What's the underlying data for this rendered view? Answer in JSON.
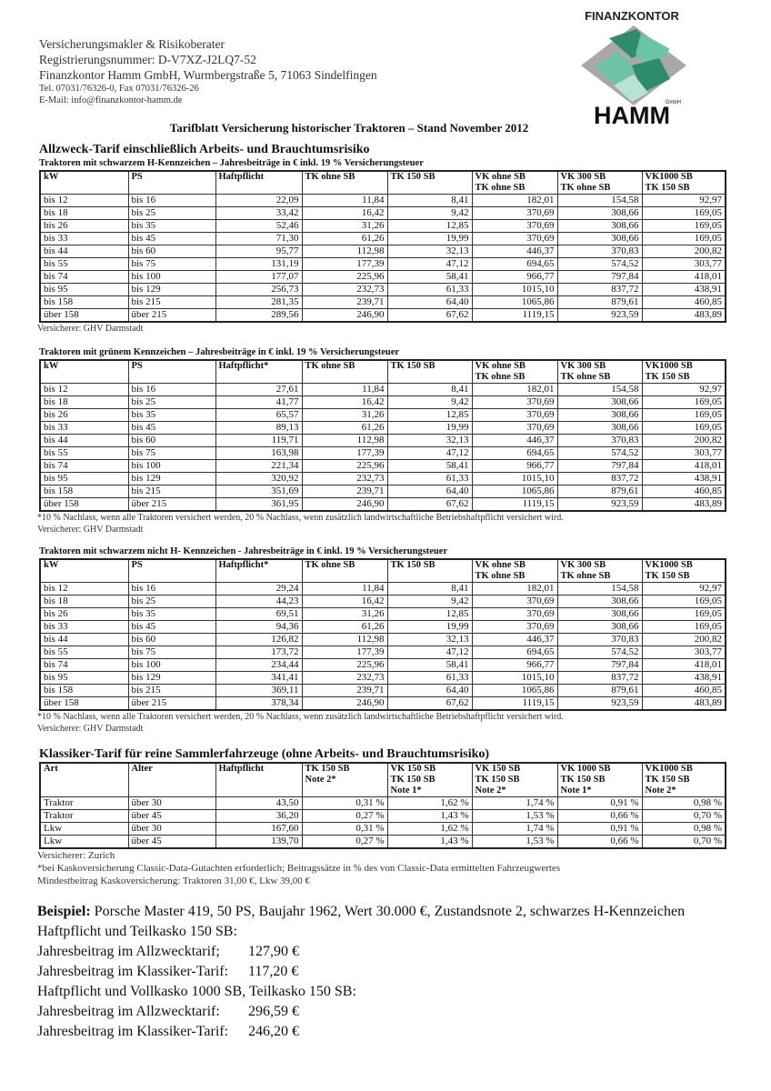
{
  "header": {
    "lines": [
      "Versicherungsmakler & Risikoberater",
      "Registrierungsnummer: D-V7XZ-J2LQ7-52",
      "Finanzkontor Hamm GmbH, Wurmbergstraße 5, 71063 Sindelfingen"
    ],
    "small_lines": [
      "Tel. 07031/76326-0, Fax 07031/76326-26",
      "E-Mail: info@finanzkontor-hamm.de"
    ]
  },
  "logo": {
    "top": "FINANZKONTOR",
    "gmbh": "GmbH",
    "name": "HAMM",
    "colors": [
      "#2e8b6e",
      "#6cc4a8",
      "#a8a8a8"
    ]
  },
  "title": "Tarifblatt Versicherung historischer Traktoren – Stand November 2012",
  "allzweck_title": "Allzweck-Tarif einschließlich Arbeits- und Brauchtumsrisiko",
  "tables": [
    {
      "subtitle": "Traktoren mit  schwarzem H-Kennzeichen – Jahresbeiträge in € inkl. 19 % Versicherungsteuer",
      "headers": [
        [
          "kW"
        ],
        [
          "PS"
        ],
        [
          "Haftpflicht"
        ],
        [
          "TK ohne SB"
        ],
        [
          "TK 150 SB"
        ],
        [
          "VK ohne SB",
          "TK ohne SB"
        ],
        [
          "VK 300 SB",
          "TK ohne SB"
        ],
        [
          "VK1000 SB",
          "TK 150 SB"
        ]
      ],
      "rows": [
        [
          "bis 12",
          "bis 16",
          "22,09",
          "11,84",
          "8,41",
          "182,01",
          "154,58",
          "92,97"
        ],
        [
          "bis 18",
          "bis 25",
          "33,42",
          "16,42",
          "9,42",
          "370,69",
          "308,66",
          "169,05"
        ],
        [
          "bis 26",
          "bis 35",
          "52,46",
          "31,26",
          "12,85",
          "370,69",
          "308,66",
          "169,05"
        ],
        [
          "bis 33",
          "bis 45",
          "71,30",
          "61,26",
          "19,99",
          "370,69",
          "308,66",
          "169,05"
        ],
        [
          "bis 44",
          "bis 60",
          "95,77",
          "112,98",
          "32,13",
          "446,37",
          "370,83",
          "200,82"
        ],
        [
          "bis 55",
          "bis 75",
          "131,19",
          "177,39",
          "47,12",
          "694,65",
          "574,52",
          "303,77"
        ],
        [
          "bis 74",
          "bis 100",
          "177,07",
          "225,96",
          "58,41",
          "966,77",
          "797,84",
          "418,01"
        ],
        [
          "bis 95",
          "bis 129",
          "256,73",
          "232,73",
          "61,33",
          "1015,10",
          "837,72",
          "438,91"
        ],
        [
          "bis 158",
          "bis 215",
          "281,35",
          "239,71",
          "64,40",
          "1065,86",
          "879,61",
          "460,85"
        ],
        [
          "über 158",
          "über 215",
          "289,56",
          "246,90",
          "67,62",
          "1119,15",
          "923,59",
          "483,89"
        ]
      ],
      "footnote": "",
      "insurer": "Versicherer: GHV Darmstadt"
    },
    {
      "subtitle": "Traktoren mit grünem Kennzeichen  – Jahresbeiträge in € inkl. 19 % Versicherungsteuer",
      "headers": [
        [
          "kW"
        ],
        [
          "PS"
        ],
        [
          "Haftpflicht*"
        ],
        [
          "TK ohne SB"
        ],
        [
          "TK 150 SB"
        ],
        [
          "VK ohne SB",
          "TK ohne SB"
        ],
        [
          "VK 300 SB",
          "TK ohne SB"
        ],
        [
          "VK1000 SB",
          "TK 150 SB"
        ]
      ],
      "rows": [
        [
          "bis 12",
          "bis 16",
          "27,61",
          "11,84",
          "8,41",
          "182,01",
          "154,58",
          "92,97"
        ],
        [
          "bis 18",
          "bis 25",
          "41,77",
          "16,42",
          "9,42",
          "370,69",
          "308,66",
          "169,05"
        ],
        [
          "bis 26",
          "bis 35",
          "65,57",
          "31,26",
          "12,85",
          "370,69",
          "308,66",
          "169,05"
        ],
        [
          "bis 33",
          "bis 45",
          "89,13",
          "61,26",
          "19,99",
          "370,69",
          "308,66",
          "169,05"
        ],
        [
          "bis 44",
          "bis 60",
          "119,71",
          "112,98",
          "32,13",
          "446,37",
          "370,83",
          "200,82"
        ],
        [
          "bis 55",
          "bis 75",
          "163,98",
          "177,39",
          "47,12",
          "694,65",
          "574,52",
          "303,77"
        ],
        [
          "bis 74",
          "bis 100",
          "221,34",
          "225,96",
          "58,41",
          "966,77",
          "797,84",
          "418,01"
        ],
        [
          "bis 95",
          "bis 129",
          "320,92",
          "232,73",
          "61,33",
          "1015,10",
          "837,72",
          "438,91"
        ],
        [
          "bis 158",
          "bis 215",
          "351,69",
          "239,71",
          "64,40",
          "1065,86",
          "879,61",
          "460,85"
        ],
        [
          "über 158",
          "über 215",
          "361,95",
          "246,90",
          "67,62",
          "1119,15",
          "923,59",
          "483,89"
        ]
      ],
      "footnote": "*10 % Nachlass, wenn alle Traktoren versichert werden, 20 % Nachlass, wenn zusätzlich landwirtschaftliche Betriebshaftpflicht versichert wird.",
      "insurer": "Versicherer: GHV Darmstadt"
    },
    {
      "subtitle": "Traktoren  mit schwarzem nicht H- Kennzeichen - Jahresbeiträge in € inkl. 19 % Versicherungsteuer",
      "headers": [
        [
          "kW"
        ],
        [
          "PS"
        ],
        [
          "Haftpflicht*"
        ],
        [
          "TK ohne SB"
        ],
        [
          "TK 150 SB"
        ],
        [
          "VK ohne SB",
          "TK ohne SB"
        ],
        [
          "VK 300 SB",
          "TK ohne SB"
        ],
        [
          "VK1000 SB",
          "TK 150 SB"
        ]
      ],
      "rows": [
        [
          "bis 12",
          "bis 16",
          "29,24",
          "11,84",
          "8,41",
          "182,01",
          "154,58",
          "92,97"
        ],
        [
          "bis 18",
          "bis 25",
          "44,23",
          "16,42",
          "9,42",
          "370,69",
          "308,66",
          "169,05"
        ],
        [
          "bis 26",
          "bis 35",
          "69,51",
          "31,26",
          "12,85",
          "370,69",
          "308,66",
          "169,05"
        ],
        [
          "bis 33",
          "bis 45",
          "94,36",
          "61,26",
          "19,99",
          "370,69",
          "308,66",
          "169,05"
        ],
        [
          "bis 44",
          "bis 60",
          "126,82",
          "112,98",
          "32,13",
          "446,37",
          "370,83",
          "200,82"
        ],
        [
          "bis 55",
          "bis 75",
          "173,72",
          "177,39",
          "47,12",
          "694,65",
          "574,52",
          "303,77"
        ],
        [
          "bis 74",
          "bis 100",
          "234,44",
          "225,96",
          "58,41",
          "966,77",
          "797,84",
          "418,01"
        ],
        [
          "bis 95",
          "bis 129",
          "341,41",
          "232,73",
          "61,33",
          "1015,10",
          "837,72",
          "438,91"
        ],
        [
          "bis 158",
          "bis 215",
          "369,11",
          "239,71",
          "64,40",
          "1065,86",
          "879,61",
          "460,85"
        ],
        [
          "über 158",
          "über 215",
          "378,34",
          "246,90",
          "67,62",
          "1119,15",
          "923,59",
          "483,89"
        ]
      ],
      "footnote": "*10 % Nachlass, wenn alle Traktoren versichert werden, 20 % Nachlass, wenn zusätzlich landwirtschaftliche Betriebshaftpflicht versichert wird.",
      "insurer": "Versicherer: GHV Darmstadt"
    },
    {
      "title": "Klassiker-Tarif  für reine Sammlerfahrzeuge (ohne Arbeits- und Brauchtumsrisiko)",
      "headers": [
        [
          "Art"
        ],
        [
          "Alter"
        ],
        [
          "Haftpflicht"
        ],
        [
          "TK 150 SB",
          "Note 2*"
        ],
        [
          "VK 150 SB",
          "TK 150 SB",
          "Note 1*"
        ],
        [
          "VK 150 SB",
          "TK 150 SB",
          "Note 2*"
        ],
        [
          "VK 1000 SB",
          "TK 150 SB",
          "Note 1*"
        ],
        [
          "VK1000 SB",
          "TK 150 SB",
          "Note 2*"
        ]
      ],
      "rows": [
        [
          "Traktor",
          "über 30",
          "43,50",
          "0,31 %",
          "1,62 %",
          "1,74 %",
          "0,91 %",
          "0,98 %"
        ],
        [
          "Traktor",
          "über 45",
          "36,20",
          "0,27 %",
          "1,43 %",
          "1,53 %",
          "0,66 %",
          "0,70 %"
        ],
        [
          "Lkw",
          "über 30",
          "167,60",
          "0,31 %",
          "1,62 %",
          "1,74 %",
          "0,91 %",
          "0,98 %"
        ],
        [
          "Lkw",
          "über 45",
          "139,70",
          "0,27 %",
          "1,43 %",
          "1,53 %",
          "0,66 %",
          "0,70 %"
        ]
      ],
      "insurer": "Versicherer: Zurich",
      "footnote": "*bei Kaskoversicherung Classic-Data-Gutachten erforderlich; Beitragssätze in % des von Classic-Data ermittelten Fahrzeugwertes",
      "minimum": "Mindestbeitrag Kaskoversicherung: Traktoren 31,00 €, Lkw 39,00 €"
    }
  ],
  "example": {
    "label": "Beispiel:",
    "text": " Porsche Master 419, 50 PS, Baujahr 1962, Wert 30.000 €, Zustandsnote 2, schwarzes H-Kennzeichen",
    "heading1": "Haftpflicht und Teilkasko 150 SB:",
    "rows1": [
      {
        "label": "Jahresbeitrag im Allzwecktarif;",
        "value": "127,90 €"
      },
      {
        "label": "Jahresbeitrag im Klassiker-Tarif:",
        "value": "117,20 €"
      }
    ],
    "heading2": "Haftpflicht und Vollkasko 1000 SB, Teilkasko 150 SB:",
    "rows2": [
      {
        "label": "Jahresbeitrag im Allzwecktarif:",
        "value": "296,59 €"
      },
      {
        "label": "Jahresbeitrag im Klassiker-Tarif:",
        "value": "246,20 €"
      }
    ]
  }
}
